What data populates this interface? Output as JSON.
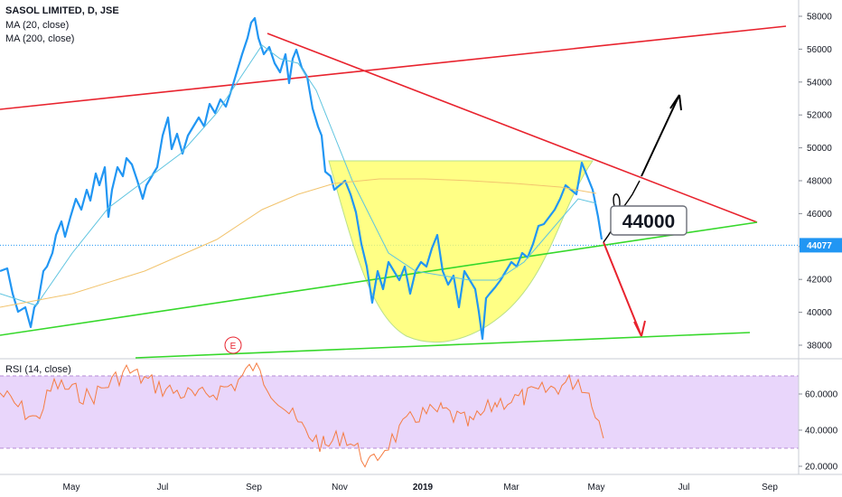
{
  "chart_data": {
    "type": "line",
    "title": "SASOL LIMITED, D, JSE",
    "indicators": [
      "MA (20, close)",
      "MA (200, close)"
    ],
    "rsi_label": "RSI (14, close)",
    "price_axis": {
      "ticks": [
        "58000",
        "56000",
        "54000",
        "52000",
        "50000",
        "48000",
        "46000",
        "44000",
        "42000",
        "40000",
        "38000"
      ],
      "range": [
        37000,
        59000
      ]
    },
    "rsi_axis": {
      "ticks": [
        "60.0000",
        "40.0000",
        "20.0000"
      ],
      "range": [
        15,
        80
      ],
      "band": [
        30,
        70
      ]
    },
    "x_axis": {
      "ticks": [
        "May",
        "Jul",
        "Sep",
        "Nov",
        "2019",
        "Mar",
        "May",
        "Jul",
        "Sep"
      ],
      "bold": [
        "2019"
      ]
    },
    "last_price": "44077",
    "target_label": "44000",
    "earnings_marker": "E",
    "series": [
      {
        "name": "SASOL price",
        "color": "#2196f3"
      },
      {
        "name": "MA (20, close)",
        "color": "#5fc4e0"
      },
      {
        "name": "MA (200, close)",
        "color": "#f2c46e"
      },
      {
        "name": "RSI (14, close)",
        "color": "#f57c42"
      }
    ],
    "colors": {
      "resistance": "#e8232e",
      "support": "#36d82b",
      "cup": "#ffff66",
      "rsi_band": "#e9d6fb",
      "arrows": "#000000"
    }
  }
}
